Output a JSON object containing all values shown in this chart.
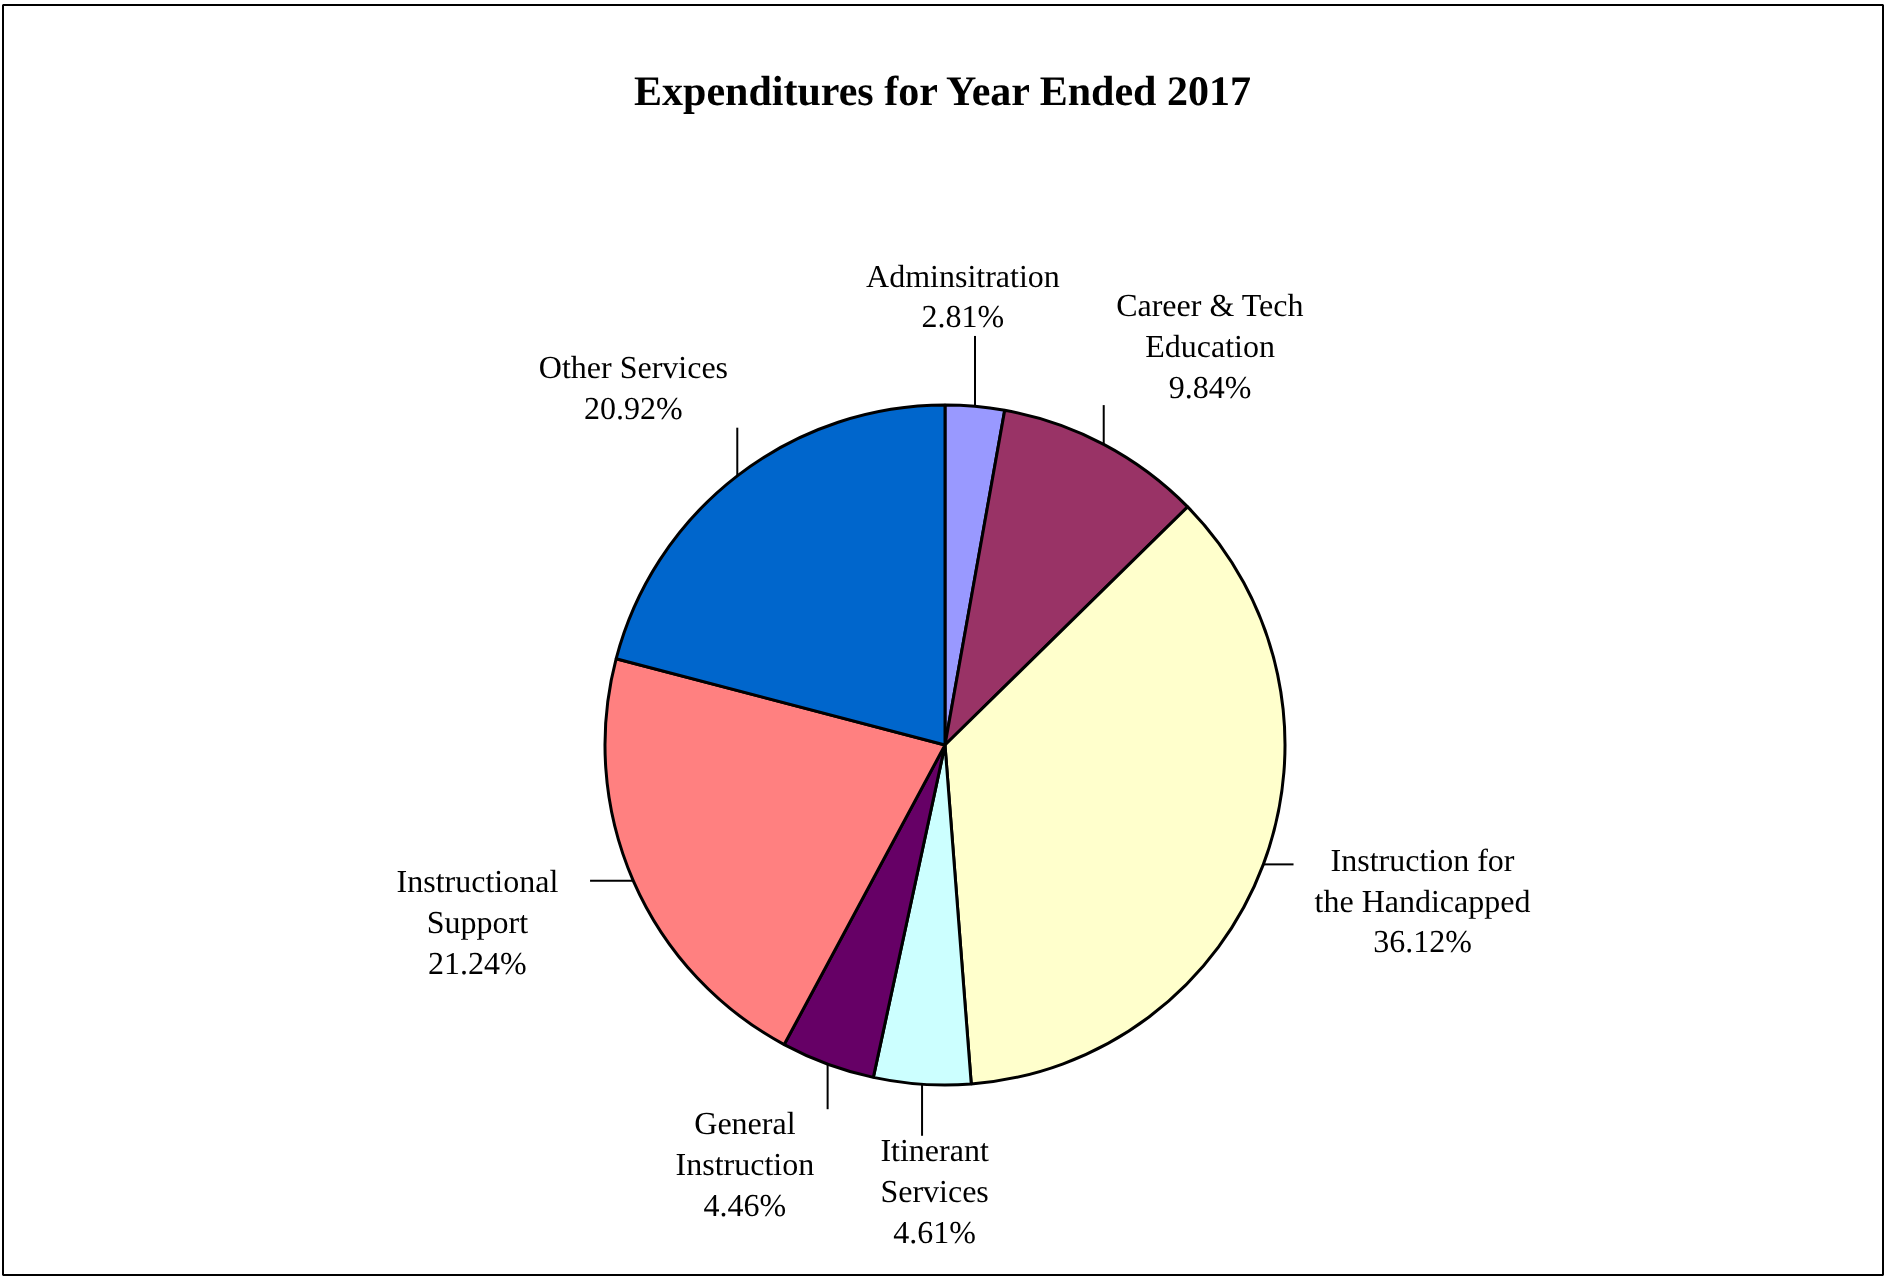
{
  "chart_data": {
    "type": "pie",
    "title": "Expenditures for Year Ended 2017",
    "categories": [
      "Adminsitration",
      "Career & Tech\nEducation",
      "Instruction for\nthe Handicapped",
      "Itinerant\nServices",
      "General\nInstruction",
      "Instructional\nSupport",
      "Other Services"
    ],
    "values": [
      2.81,
      9.84,
      36.12,
      4.61,
      4.46,
      21.24,
      20.92
    ],
    "value_labels": [
      "2.81%",
      "9.84%",
      "36.12%",
      "4.61%",
      "4.46%",
      "21.24%",
      "20.92%"
    ],
    "colors": [
      "#9999ff",
      "#993366",
      "#ffffcc",
      "#ccffff",
      "#660066",
      "#ff8080",
      "#0066cc"
    ]
  }
}
